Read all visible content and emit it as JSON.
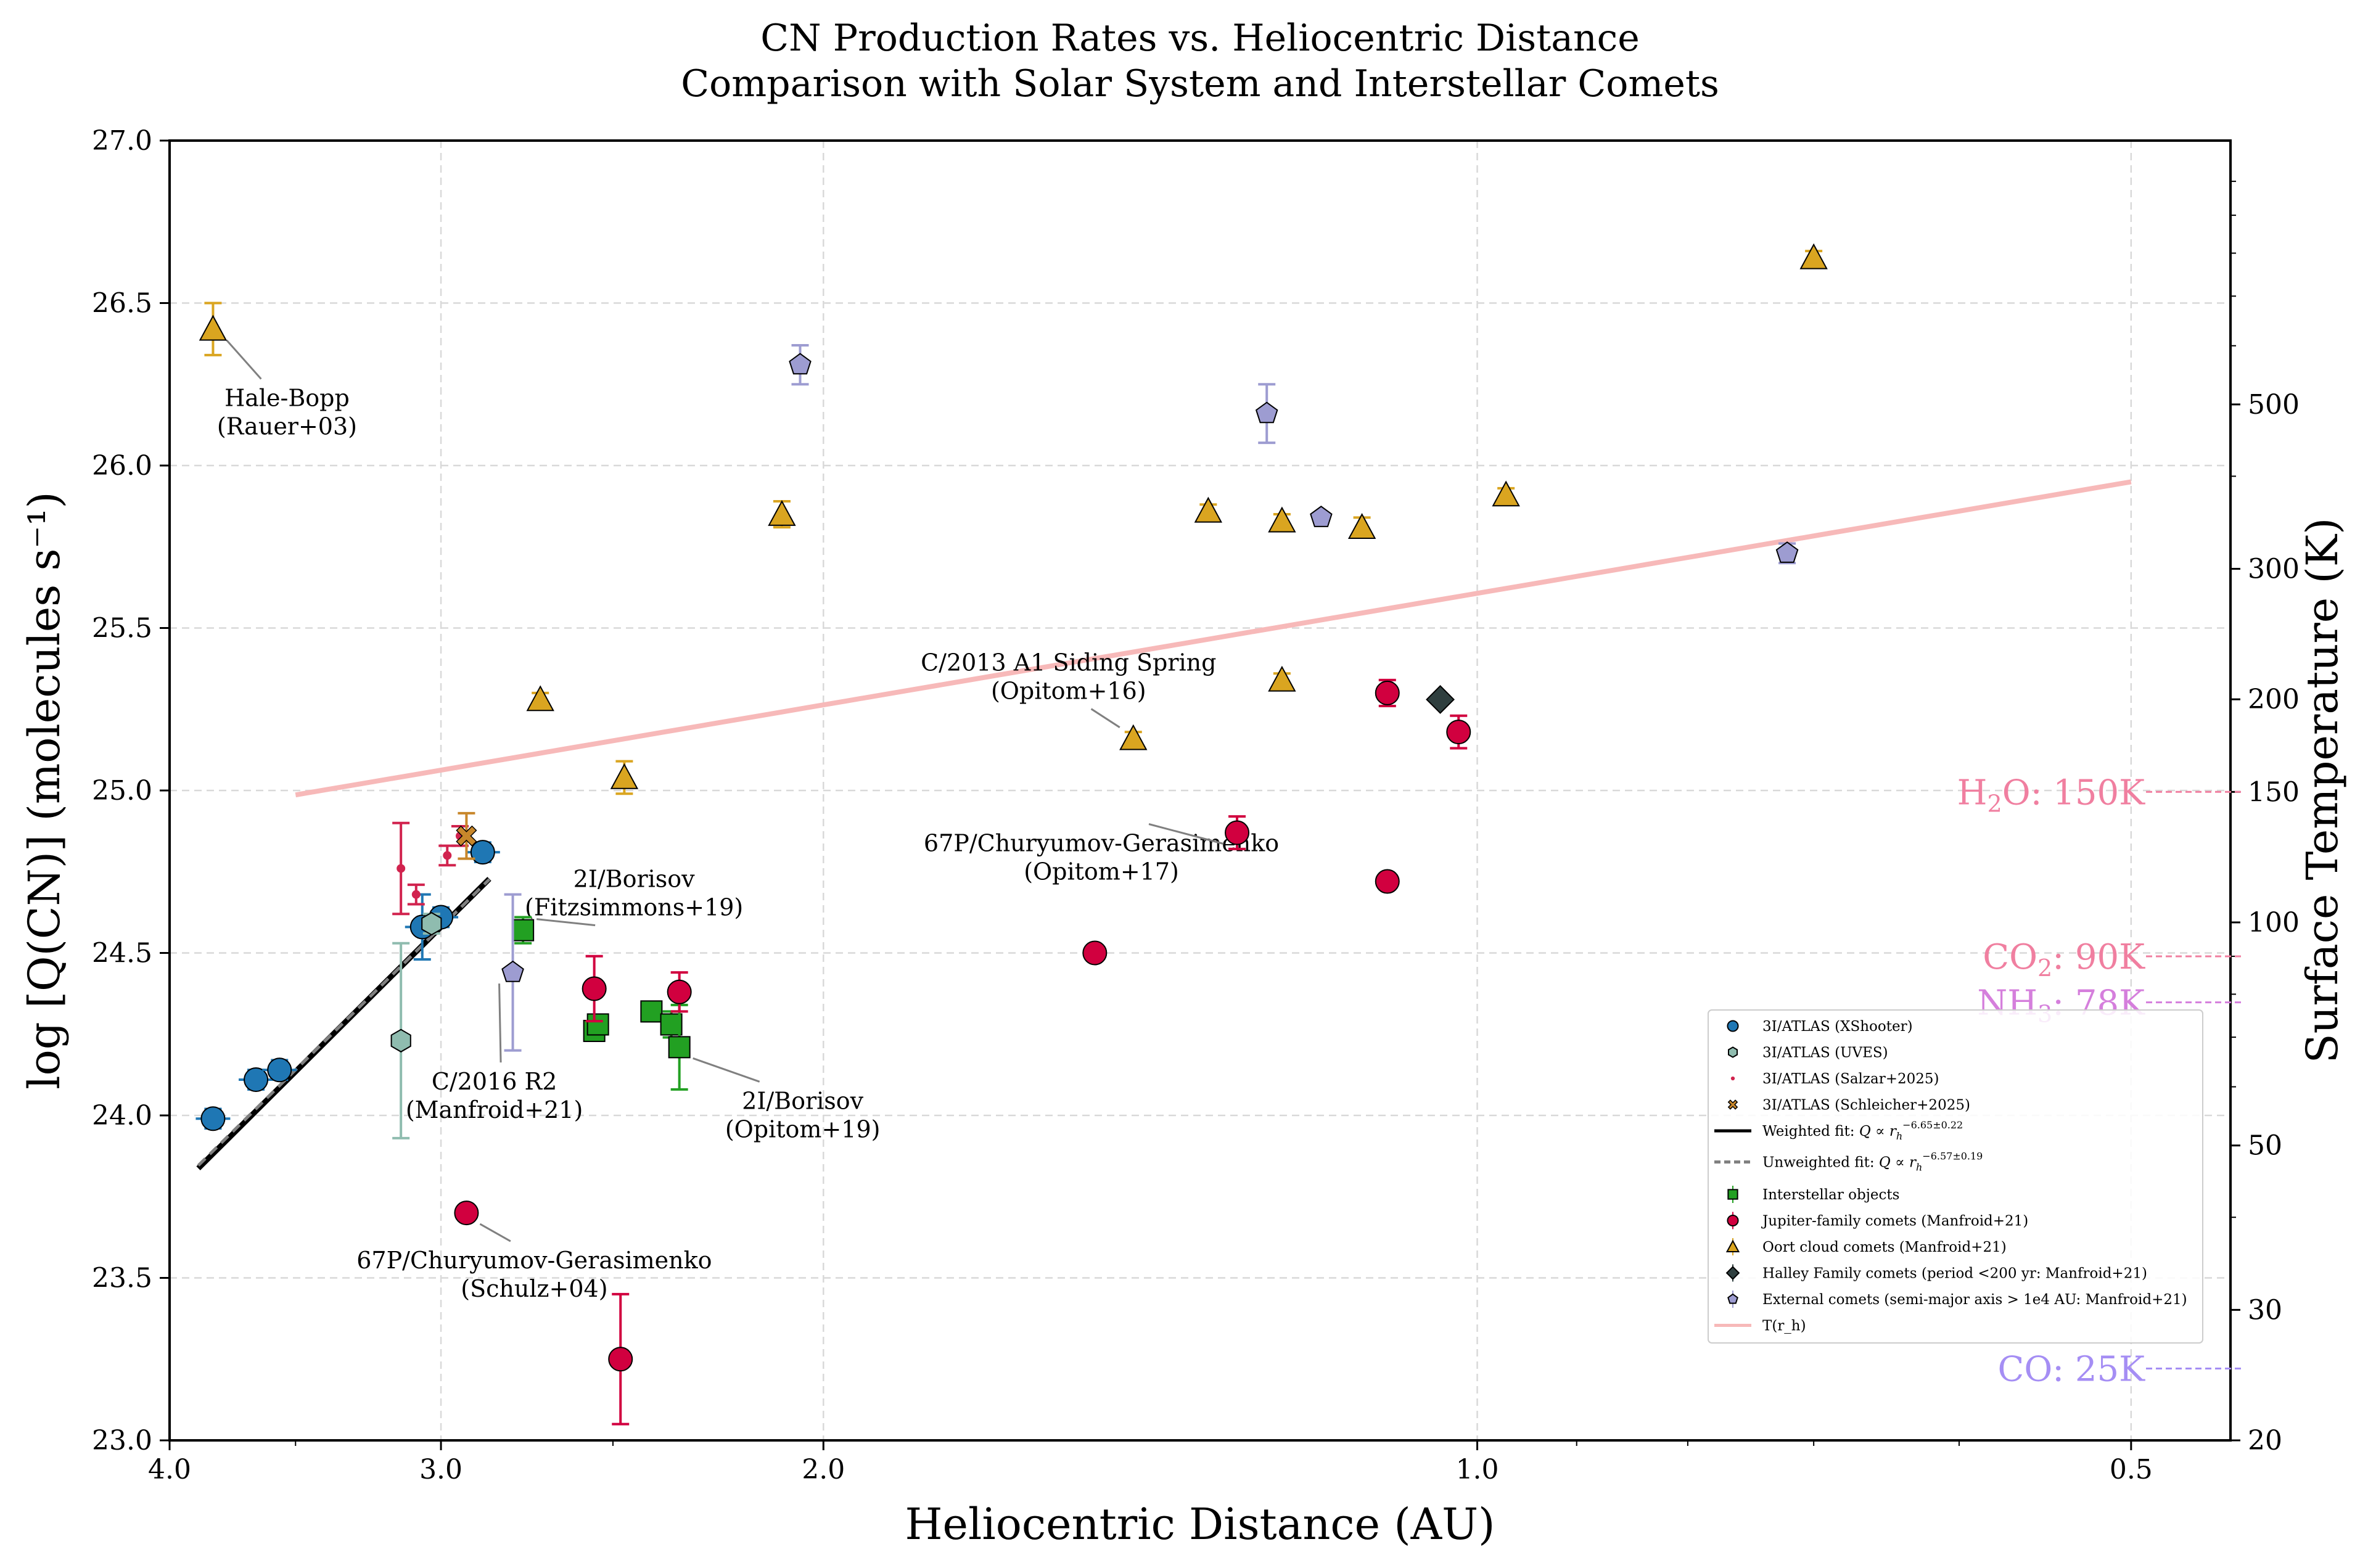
{
  "chart_data": {
    "type": "scatter",
    "title": "CN Production Rates vs. Heliocentric Distance",
    "subtitle": "Comparison with Solar System and Interstellar Comets",
    "xlabel": "Heliocentric Distance (AU)",
    "ylabel": "log [Q(CN)] (molecules s⁻¹)",
    "y2label": "Surface Temperature (K)",
    "xscale": "log (inverted)",
    "xlim": [
      4.0,
      0.45
    ],
    "ylim": [
      23.0,
      27.0
    ],
    "y2lim": [
      20,
      1135
    ],
    "grid": true,
    "xticks": [
      4.0,
      3.0,
      2.0,
      1.0,
      0.5
    ],
    "xtick_labels": [
      "4.0",
      "3.0",
      "2.0",
      "1.0",
      "0.5"
    ],
    "yticks": [
      23.0,
      23.5,
      24.0,
      24.5,
      25.0,
      25.5,
      26.0,
      26.5,
      27.0
    ],
    "ytick_labels": [
      "23.0",
      "23.5",
      "24.0",
      "24.5",
      "25.0",
      "25.5",
      "26.0",
      "26.5",
      "27.0"
    ],
    "y2ticks": [
      20,
      30,
      50,
      100,
      150,
      200,
      300,
      500
    ],
    "y2tick_labels": [
      "20",
      "30",
      "50",
      "100",
      "150",
      "200",
      "300",
      "500"
    ],
    "series": [
      {
        "name": "3I/ATLAS (XShooter)",
        "marker": "circle",
        "color": "#1f77b4",
        "points": [
          [
            3.82,
            23.99,
            0.03
          ],
          [
            3.65,
            24.11,
            0.03
          ],
          [
            3.56,
            24.14,
            0.03
          ],
          [
            3.06,
            24.58,
            0.1
          ],
          [
            3.0,
            24.61,
            0.03
          ],
          [
            2.87,
            24.81,
            0.03
          ]
        ]
      },
      {
        "name": "3I/ATLAS (UVES)",
        "marker": "hexagon",
        "color": "#8fbcaf",
        "points": [
          [
            3.13,
            24.23,
            0.3
          ],
          [
            3.03,
            24.59,
            0.03
          ]
        ]
      },
      {
        "name": "3I/ATLAS (Salzar+2025)",
        "marker": "small-dot",
        "color": "#d1234e",
        "points": [
          [
            3.13,
            24.76,
            0.14
          ],
          [
            3.08,
            24.68,
            0.03
          ],
          [
            2.98,
            24.8,
            0.03
          ],
          [
            2.94,
            24.86,
            0.03
          ]
        ]
      },
      {
        "name": "3I/ATLAS (Schleicher+2025)",
        "marker": "x",
        "color": "#c8872b",
        "points": [
          [
            2.92,
            24.86,
            0.07
          ]
        ]
      },
      {
        "name": "Interstellar objects",
        "marker": "square",
        "color": "#22a022",
        "points": [
          [
            2.75,
            24.57,
            0.04
          ],
          [
            2.55,
            24.26,
            0.03
          ],
          [
            2.54,
            24.28,
            0.03
          ],
          [
            2.4,
            24.32,
            0.03
          ],
          [
            2.35,
            24.28,
            0.04
          ],
          [
            2.33,
            24.21,
            0.13
          ]
        ]
      },
      {
        "name": "Jupiter-family comets (Manfroid+21)",
        "marker": "circle",
        "color": "#d1003f",
        "points": [
          [
            2.92,
            23.7,
            0.02
          ],
          [
            2.55,
            24.39,
            0.1
          ],
          [
            2.48,
            23.25,
            0.2
          ],
          [
            2.33,
            24.38,
            0.06
          ],
          [
            1.5,
            24.5,
            0.02
          ],
          [
            1.29,
            24.87,
            0.05
          ],
          [
            1.1,
            25.3,
            0.04
          ],
          [
            1.1,
            24.72,
            0.02
          ],
          [
            1.02,
            25.18,
            0.05
          ]
        ]
      },
      {
        "name": "Oort cloud comets (Manfroid+21)",
        "marker": "triangle",
        "color": "#daa520",
        "points": [
          [
            3.82,
            26.42,
            0.08
          ],
          [
            2.7,
            25.28,
            0.02
          ],
          [
            2.47,
            25.04,
            0.05
          ],
          [
            2.09,
            25.85,
            0.04
          ],
          [
            1.44,
            25.16,
            0.02
          ],
          [
            1.33,
            25.86,
            0.02
          ],
          [
            1.23,
            25.83,
            0.02
          ],
          [
            1.23,
            25.34,
            0.02
          ],
          [
            1.13,
            25.81,
            0.03
          ],
          [
            0.97,
            25.91,
            0.02
          ],
          [
            0.7,
            26.64,
            0.02
          ]
        ]
      },
      {
        "name": "Halley Family comets (period <200 yr: Manfroid+21)",
        "marker": "diamond",
        "color": "#2f3f3f",
        "points": [
          [
            1.04,
            25.28,
            0.0
          ]
        ]
      },
      {
        "name": "External comets (semi-major axis > 1e4 AU: Manfroid+21)",
        "marker": "pentagon",
        "color": "#9d9cd1",
        "points": [
          [
            2.78,
            24.44,
            0.24
          ],
          [
            2.05,
            26.31,
            0.06
          ],
          [
            1.25,
            26.16,
            0.09
          ],
          [
            1.18,
            25.84,
            0.0
          ],
          [
            0.72,
            25.73,
            0.03
          ]
        ]
      }
    ],
    "fits": [
      {
        "name": "Weighted fit: Q ∝ r_h^-6.65±0.22",
        "slope": -6.65,
        "slope_err": 0.22,
        "x_range": [
          3.88,
          2.85
        ],
        "anchor": [
          3.0,
          24.58
        ]
      },
      {
        "name": "Unweighted fit: Q ∝ r_h^-6.57±0.19",
        "slope": -6.57,
        "slope_err": 0.19,
        "x_range": [
          3.88,
          2.85
        ],
        "anchor": [
          3.0,
          24.58
        ]
      }
    ],
    "temperature_curve": {
      "name": "T(r_h)",
      "T1AU": 278,
      "power": -0.5,
      "x_range": [
        3.5,
        0.5
      ]
    },
    "thresholds": [
      {
        "label_pre": "H",
        "label_sub": "2",
        "label_post": "O: 150K",
        "T": 150
      },
      {
        "label_pre": "CO",
        "label_sub": "2",
        "label_post": ": 90K",
        "T": 90
      },
      {
        "label_pre": "NH",
        "label_sub": "3",
        "label_post": ": 78K",
        "T": 78
      },
      {
        "label_pre": "CO: 25K",
        "label_sub": "",
        "label_post": "",
        "T": 25
      }
    ],
    "annotations": [
      {
        "lines": [
          "Hale-Bopp",
          "(Rauer+03)"
        ],
        "point": [
          3.82,
          26.42
        ]
      },
      {
        "lines": [
          "2I/Borisov",
          "(Fitzsimmons+19)"
        ],
        "point": [
          2.75,
          24.57
        ]
      },
      {
        "lines": [
          "C/2016 R2",
          "(Manfroid+21)"
        ],
        "point": [
          2.78,
          24.44
        ]
      },
      {
        "lines": [
          "2I/Borisov",
          "(Opitom+19)"
        ],
        "point": [
          2.33,
          24.21
        ]
      },
      {
        "lines": [
          "C/2013 A1 Siding Spring",
          "(Opitom+16)"
        ],
        "point": [
          1.44,
          25.16
        ]
      },
      {
        "lines": [
          "67P/Churyumov-Gerasimenko",
          "(Opitom+17)"
        ],
        "point": [
          1.29,
          24.87
        ]
      },
      {
        "lines": [
          "67P/Churyumov-Gerasimenko",
          "(Schulz+04)"
        ],
        "point": [
          2.92,
          23.7
        ]
      }
    ],
    "legend": {
      "position": "lower-right",
      "items": [
        {
          "label": "3I/ATLAS (XShooter)",
          "kind": "circle",
          "color": "#1f77b4"
        },
        {
          "label": "3I/ATLAS (UVES)",
          "kind": "hexagon",
          "color": "#8fbcaf"
        },
        {
          "label": "3I/ATLAS (Salzar+2025)",
          "kind": "small-dot",
          "color": "#d1234e"
        },
        {
          "label": "3I/ATLAS (Schleicher+2025)",
          "kind": "x",
          "color": "#c8872b"
        },
        {
          "label": "Weighted fit: ",
          "kind": "solid-line",
          "color": "#000000",
          "exponent": "−6.65±0.22"
        },
        {
          "label": "Unweighted fit: ",
          "kind": "dashed-line",
          "color": "#808080",
          "exponent": "−6.57±0.19"
        },
        {
          "label": "Interstellar objects",
          "kind": "square-err",
          "color": "#22a022"
        },
        {
          "label": "Jupiter-family comets (Manfroid+21)",
          "kind": "circle-err",
          "color": "#d1003f"
        },
        {
          "label": "Oort cloud comets (Manfroid+21)",
          "kind": "triangle-err",
          "color": "#daa520"
        },
        {
          "label": "Halley Family comets (period <200 yr: Manfroid+21)",
          "kind": "diamond-err",
          "color": "#2f3f3f"
        },
        {
          "label": "External comets (semi-major axis > 1e4 AU: Manfroid+21)",
          "kind": "pentagon-err",
          "color": "#9d9cd1"
        },
        {
          "label": "T(r_h)",
          "kind": "thick-line",
          "color": "#f7b9b9"
        }
      ]
    },
    "colors": {
      "temperature": "#f7b9b9",
      "h2o": "#f07fa0",
      "co2": "#f07fa0",
      "nh3": "#d57fdc",
      "co": "#a58ef4",
      "grid": "#d9d9d9"
    }
  }
}
